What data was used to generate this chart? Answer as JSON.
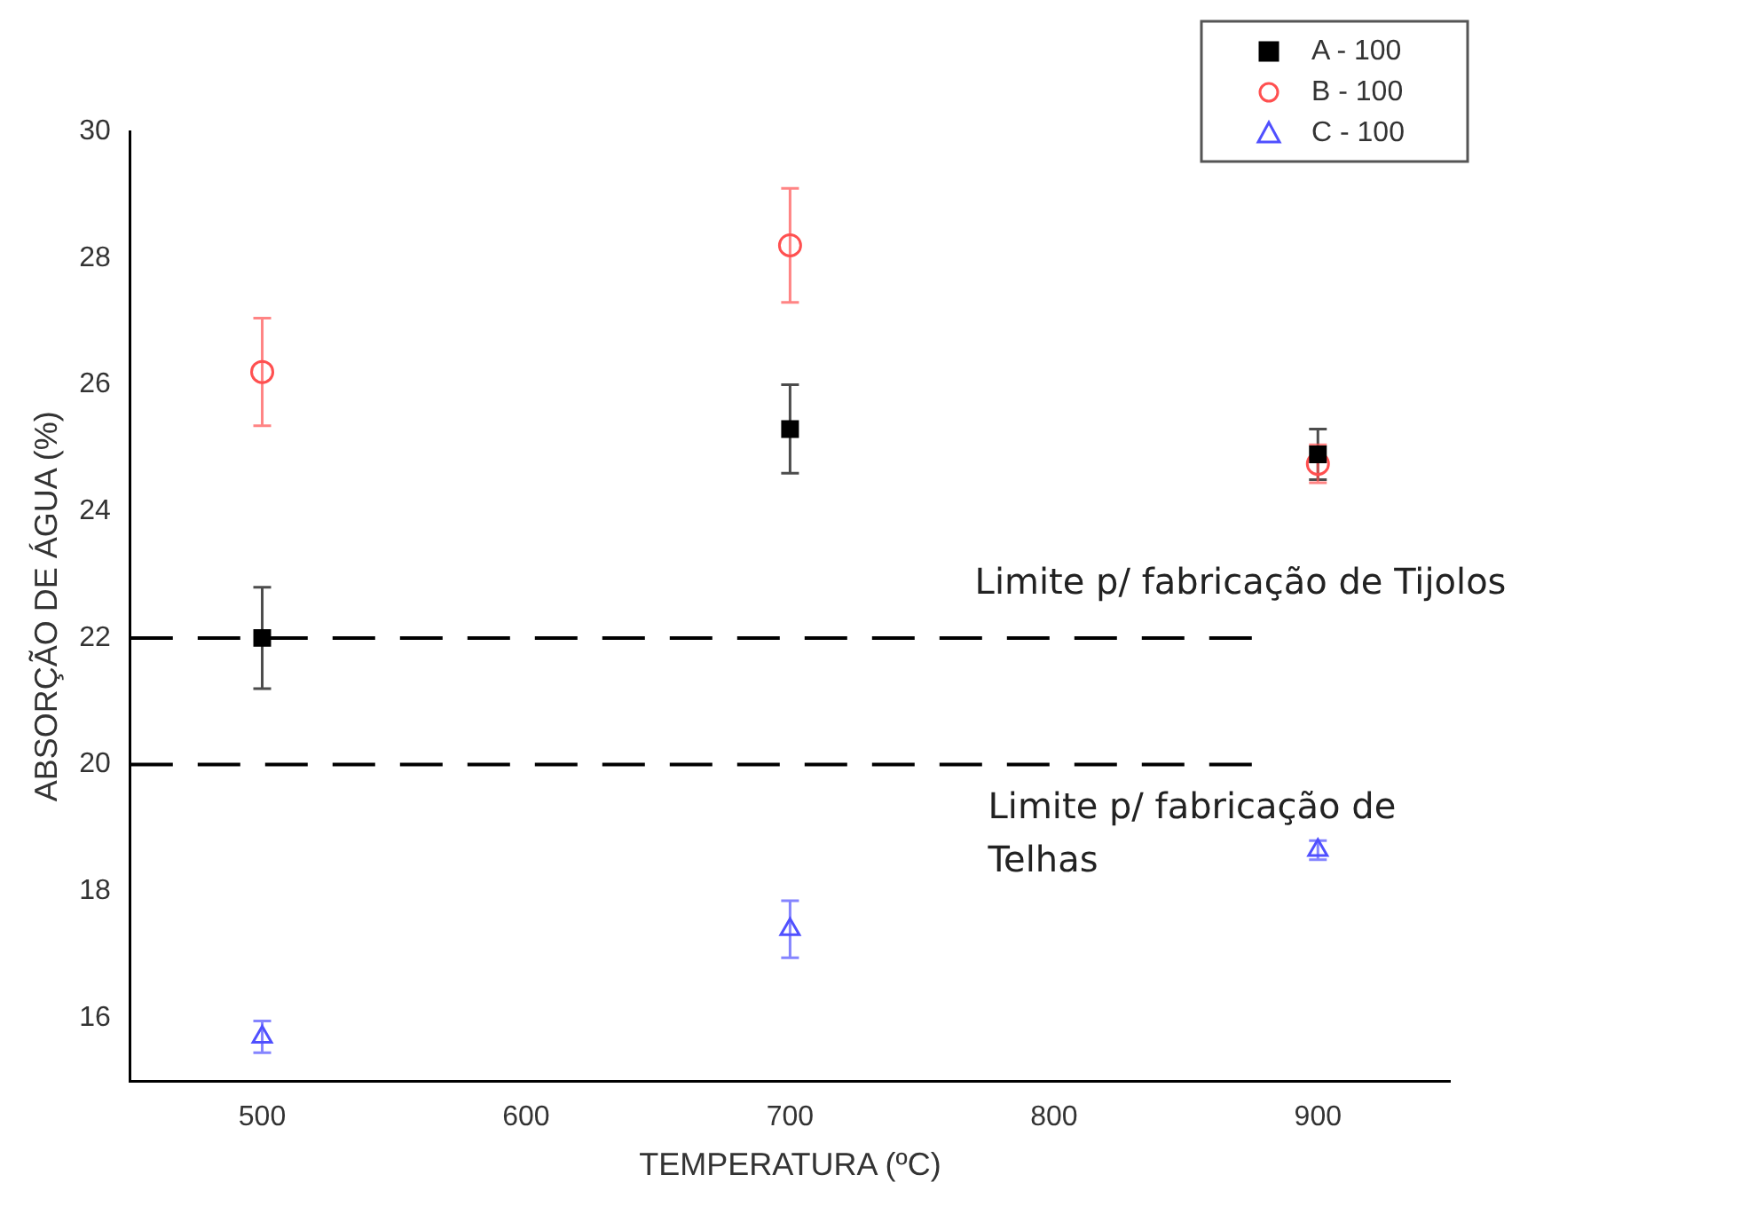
{
  "chart_data": {
    "type": "scatter",
    "xlabel": "TEMPERATURA (ºC)",
    "ylabel": "ABSORÇÃO DE ÁGUA (%)",
    "x": [
      500,
      700,
      900
    ],
    "series": [
      {
        "name": "A - 100",
        "color": "#000000",
        "marker": "square",
        "values": [
          22.0,
          25.3,
          24.9
        ],
        "errors": [
          0.8,
          0.7,
          0.4
        ]
      },
      {
        "name": "B - 100",
        "color": "#ff5050",
        "marker": "circle",
        "values": [
          26.2,
          28.2,
          24.75
        ],
        "errors": [
          0.85,
          0.9,
          0.3
        ]
      },
      {
        "name": "C - 100",
        "color": "#5050ff",
        "marker": "triangle",
        "values": [
          15.7,
          17.4,
          18.65
        ],
        "errors": [
          0.25,
          0.45,
          0.15
        ]
      }
    ],
    "xlim": [
      450,
      950
    ],
    "xticks": [
      500,
      600,
      700,
      800,
      900
    ],
    "ylim": [
      15,
      30
    ],
    "yticks": [
      16,
      18,
      20,
      22,
      24,
      26,
      28,
      30
    ],
    "ref_lines": [
      {
        "axis": "y",
        "value": 22,
        "label": "Limite p/ fabricação de Tijolos",
        "color": "#000000",
        "line_style": "dashed"
      },
      {
        "axis": "y",
        "value": 20,
        "label": "Limite p/ fabricação de Telhas",
        "color": "#000000",
        "line_style": "dashed"
      }
    ],
    "grid": false,
    "legend": "top right"
  }
}
